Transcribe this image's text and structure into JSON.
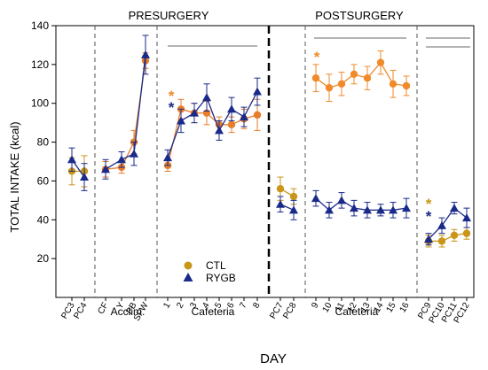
{
  "chart_data": {
    "type": "line",
    "ylabel": "TOTAL INTAKE (kcal)",
    "xlabel": "DAY",
    "ylim": [
      0,
      140
    ],
    "yticks": [
      20,
      40,
      60,
      80,
      100,
      120,
      140
    ],
    "phase_labels": [
      "PRESURGERY",
      "POSTSURGERY"
    ],
    "section_labels": [
      "Acclim.",
      "Cafeteria",
      "Cafeteria"
    ],
    "categories": [
      "PC3",
      "PC4",
      "CF",
      "Y",
      "PB",
      "SFW",
      "1",
      "2",
      "3",
      "4",
      "5",
      "6",
      "7",
      "8",
      "PC7",
      "PC8",
      "9",
      "10",
      "11",
      "12",
      "13",
      "14",
      "15",
      "16",
      "PC9",
      "PC10",
      "PC11",
      "PC12"
    ],
    "segments": [
      [
        0,
        1
      ],
      [
        2,
        5
      ],
      [
        6,
        13
      ],
      [
        14,
        15
      ],
      [
        16,
        23
      ],
      [
        24,
        27
      ]
    ],
    "series": [
      {
        "name": "CTL",
        "color": "#c9961a",
        "colors": [
          "#c9961a",
          "#c9961a",
          "#e87d2a",
          "#e87d2a",
          "#e87d2a",
          "#e87d2a",
          "#e87d2a",
          "#e87d2a",
          "#e87d2a",
          "#e87d2a",
          "#e87d2a",
          "#e87d2a",
          "#e87d2a",
          "#e87d2a",
          "#c9961a",
          "#c9961a",
          "#f08a2a",
          "#f08a2a",
          "#f08a2a",
          "#f08a2a",
          "#f08a2a",
          "#f08a2a",
          "#f08a2a",
          "#f08a2a",
          "#c9961a",
          "#c9961a",
          "#c9961a",
          "#c9961a"
        ],
        "values": [
          65,
          65,
          66,
          67,
          80,
          122,
          68,
          97,
          95,
          95,
          89,
          89,
          92,
          94,
          56,
          52,
          113,
          108,
          110,
          115,
          113,
          121,
          110,
          109,
          29,
          29,
          32,
          33
        ],
        "errors": [
          7,
          8,
          4,
          3,
          6,
          4,
          3,
          5,
          5,
          6,
          4,
          4,
          5,
          8,
          6,
          4,
          7,
          7,
          6,
          5,
          6,
          6,
          7,
          5,
          3,
          3,
          3,
          3
        ]
      },
      {
        "name": "RYGB",
        "color": "#1a2a8a",
        "values": [
          71,
          62,
          66,
          71,
          74,
          125,
          72,
          91,
          95,
          103,
          86,
          97,
          93,
          106,
          48,
          45,
          51,
          45,
          50,
          46,
          45,
          45,
          45,
          46,
          30,
          37,
          46,
          41
        ],
        "errors": [
          6,
          7,
          5,
          4,
          6,
          10,
          4,
          6,
          5,
          7,
          5,
          6,
          5,
          7,
          4,
          5,
          4,
          4,
          4,
          4,
          4,
          3,
          4,
          5,
          3,
          4,
          3,
          5
        ]
      }
    ],
    "significance_markers": [
      {
        "label": "*",
        "color": "#f08a2a",
        "at": "1"
      },
      {
        "label": "*",
        "color": "#1a2a8a",
        "at": "1"
      },
      {
        "label": "*",
        "color": "#f08a2a",
        "at": "9"
      },
      {
        "label": "*",
        "color": "#c9961a",
        "at": "PC9"
      },
      {
        "label": "*",
        "color": "#1a2a8a",
        "at": "PC9"
      }
    ],
    "legend": {
      "placement": "bottom-center-left",
      "entries": [
        "CTL",
        "RYGB"
      ]
    }
  }
}
